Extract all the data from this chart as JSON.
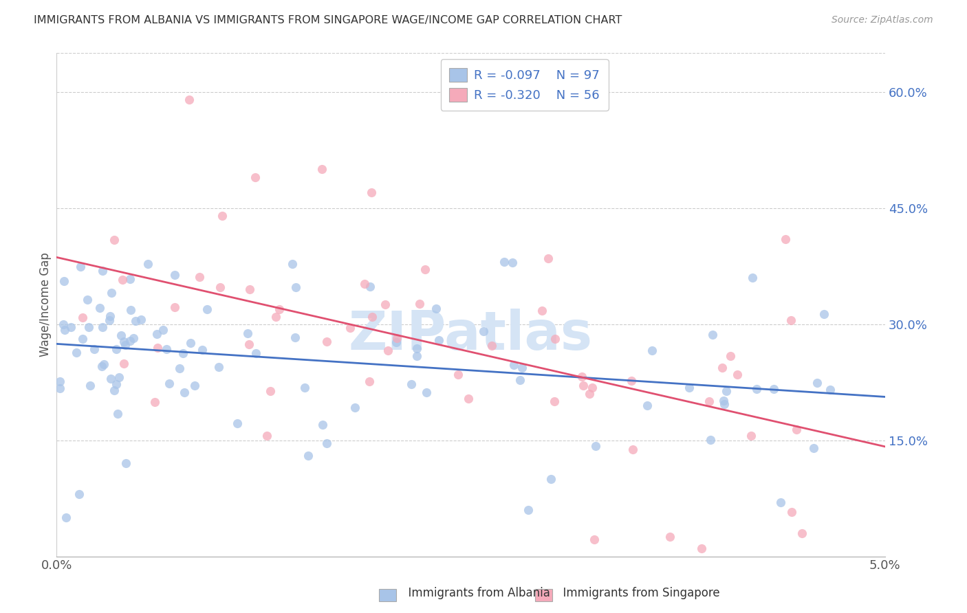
{
  "title": "IMMIGRANTS FROM ALBANIA VS IMMIGRANTS FROM SINGAPORE WAGE/INCOME GAP CORRELATION CHART",
  "source": "Source: ZipAtlas.com",
  "ylabel": "Wage/Income Gap",
  "watermark": "ZIPatlas",
  "albania_color": "#a8c4e8",
  "singapore_color": "#f5aaba",
  "albania_line_color": "#4472c4",
  "singapore_line_color": "#e05070",
  "legend_text_color": "#4472c4",
  "legend_r_albania": "-0.097",
  "legend_n_albania": "97",
  "legend_r_singapore": "-0.320",
  "legend_n_singapore": "56",
  "xlim": [
    0.0,
    0.05
  ],
  "ylim": [
    0.0,
    0.65
  ],
  "right_ytick_vals": [
    0.15,
    0.3,
    0.45,
    0.6
  ],
  "right_ytick_labels": [
    "15.0%",
    "30.0%",
    "45.0%",
    "60.0%"
  ],
  "grid_color": "#cccccc",
  "background_color": "white"
}
